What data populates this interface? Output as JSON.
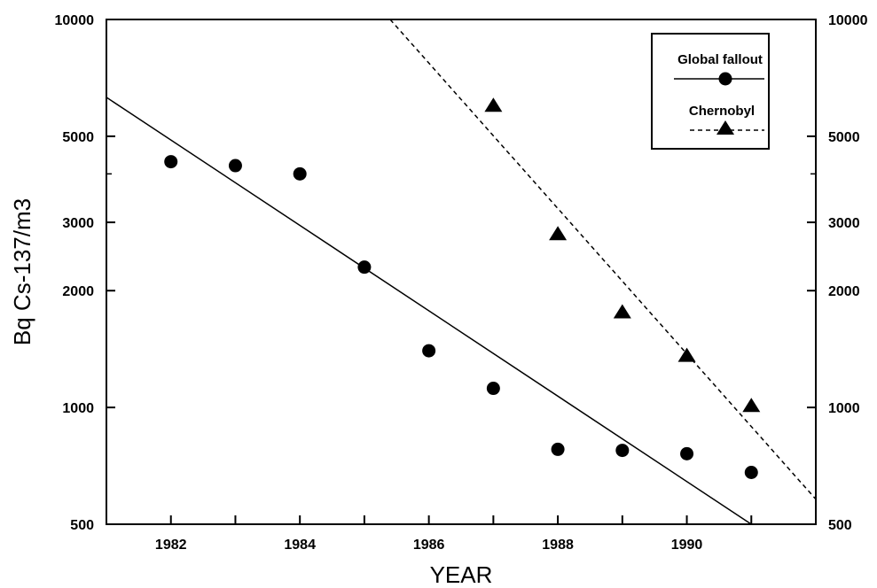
{
  "chart_data": {
    "type": "scatter",
    "xlabel": "YEAR",
    "ylabel": "Bq Cs-137/m3",
    "xlim": [
      1981,
      1992
    ],
    "ylim": [
      500,
      10000
    ],
    "yscale": "log",
    "x_ticks": [
      "1982",
      "1984",
      "1986",
      "1988",
      "1990"
    ],
    "y_ticks_left": [
      "10000",
      "5000",
      "3000",
      "2000",
      "1000",
      "500"
    ],
    "y_ticks_right": [
      "10000",
      "5000",
      "3000",
      "2000",
      "1000",
      "500"
    ],
    "grid": false,
    "legend_position": "top-right",
    "series": [
      {
        "name": "Global fallout",
        "marker": "circle",
        "line_style": "solid",
        "x": [
          1982,
          1983,
          1984,
          1985,
          1986,
          1987,
          1988,
          1989,
          1990,
          1991
        ],
        "y": [
          4300,
          4200,
          4000,
          2300,
          1400,
          1120,
          780,
          775,
          760,
          680
        ],
        "fit": {
          "x": [
            1981,
            1991
          ],
          "y": [
            6300,
            500
          ]
        }
      },
      {
        "name": "Chernobyl",
        "marker": "triangle",
        "line_style": "dashed",
        "x": [
          1987,
          1988,
          1989,
          1990,
          1991
        ],
        "y": [
          6000,
          2800,
          1760,
          1360,
          1010
        ],
        "fit": {
          "x": [
            1985.4,
            1992
          ],
          "y": [
            10000,
            580
          ]
        }
      }
    ]
  }
}
